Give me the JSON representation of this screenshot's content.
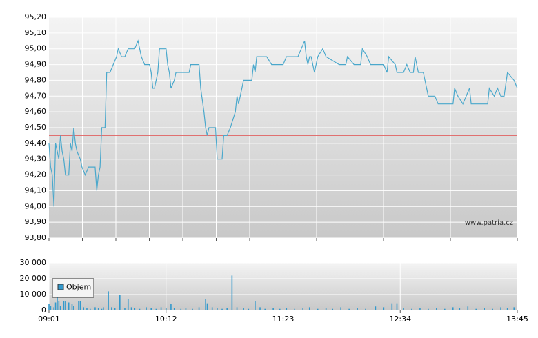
{
  "chart_data": [
    {
      "type": "line",
      "color": "#4aa8cc",
      "reference_line": 94.45,
      "reference_color": "#e06060",
      "annotation": "www.patria.cz",
      "xlim": [
        "09:01",
        "13:45"
      ],
      "ylim": [
        93.8,
        95.2
      ],
      "yticks": [
        {
          "value": 93.8,
          "label": "93,80"
        },
        {
          "value": 93.9,
          "label": "93,90"
        },
        {
          "value": 94.0,
          "label": "94,00"
        },
        {
          "value": 94.1,
          "label": "94,10"
        },
        {
          "value": 94.2,
          "label": "94,20"
        },
        {
          "value": 94.3,
          "label": "94,30"
        },
        {
          "value": 94.4,
          "label": "94,40"
        },
        {
          "value": 94.5,
          "label": "94,50"
        },
        {
          "value": 94.6,
          "label": "94,60"
        },
        {
          "value": 94.7,
          "label": "94,70"
        },
        {
          "value": 94.8,
          "label": "94,80"
        },
        {
          "value": 94.9,
          "label": "94,90"
        },
        {
          "value": 95.0,
          "label": "95,00"
        },
        {
          "value": 95.1,
          "label": "95,10"
        },
        {
          "value": 95.2,
          "label": "95,20"
        }
      ],
      "grid": true,
      "x": [
        "09:01",
        "09:02",
        "09:03",
        "09:04",
        "09:05",
        "09:06",
        "09:07",
        "09:08",
        "09:09",
        "09:10",
        "09:11",
        "09:13",
        "09:14",
        "09:15",
        "09:16",
        "09:17",
        "09:18",
        "09:20",
        "09:21",
        "09:23",
        "09:25",
        "09:29",
        "09:30",
        "09:31",
        "09:32",
        "09:33",
        "09:35",
        "09:36",
        "09:38",
        "09:40",
        "09:42",
        "09:43",
        "09:45",
        "09:47",
        "09:49",
        "09:53",
        "09:55",
        "09:57",
        "09:59",
        "10:02",
        "10:03",
        "10:04",
        "10:05",
        "10:07",
        "10:08",
        "10:12",
        "10:13",
        "10:14",
        "10:15",
        "10:17",
        "10:18",
        "10:26",
        "10:27",
        "10:32",
        "10:33",
        "10:35",
        "10:36",
        "10:37",
        "10:38",
        "10:42",
        "10:43",
        "10:46",
        "10:47",
        "10:49",
        "10:51",
        "10:54",
        "10:55",
        "10:56",
        "10:58",
        "10:59",
        "11:04",
        "11:05",
        "11:06",
        "11:07",
        "11:13",
        "11:16",
        "11:23",
        "11:25",
        "11:32",
        "11:34",
        "11:36",
        "11:37",
        "11:38",
        "11:39",
        "11:40",
        "11:42",
        "11:44",
        "11:47",
        "11:49",
        "11:57",
        "12:01",
        "12:02",
        "12:06",
        "12:10",
        "12:11",
        "12:14",
        "12:16",
        "12:24",
        "12:26",
        "12:27",
        "12:31",
        "12:32",
        "12:36",
        "12:38",
        "12:40",
        "12:42",
        "12:43",
        "12:45",
        "12:48",
        "12:51",
        "12:55",
        "12:57",
        "13:06",
        "13:07",
        "13:09",
        "13:12",
        "13:16",
        "13:17",
        "13:27",
        "13:28",
        "13:31",
        "13:33",
        "13:35",
        "13:37",
        "13:39",
        "13:43",
        "13:45"
      ],
      "values": [
        94.4,
        94.25,
        94.2,
        94.0,
        94.4,
        94.35,
        94.3,
        94.45,
        94.35,
        94.3,
        94.2,
        94.2,
        94.4,
        94.35,
        94.5,
        94.4,
        94.35,
        94.3,
        94.25,
        94.2,
        94.25,
        94.25,
        94.1,
        94.2,
        94.25,
        94.5,
        94.5,
        94.85,
        94.85,
        94.9,
        94.95,
        95.0,
        94.95,
        94.95,
        95.0,
        95.0,
        95.05,
        94.95,
        94.9,
        94.9,
        94.85,
        94.75,
        94.75,
        94.85,
        95.0,
        95.0,
        94.9,
        94.85,
        94.75,
        94.8,
        94.85,
        94.85,
        94.9,
        94.9,
        94.75,
        94.6,
        94.5,
        94.45,
        94.5,
        94.5,
        94.3,
        94.3,
        94.45,
        94.45,
        94.5,
        94.6,
        94.7,
        94.65,
        94.75,
        94.8,
        94.8,
        94.9,
        94.85,
        94.95,
        94.95,
        94.9,
        94.9,
        94.95,
        94.95,
        95.0,
        95.05,
        94.95,
        94.9,
        94.95,
        94.95,
        94.85,
        94.95,
        95.0,
        94.95,
        94.9,
        94.9,
        94.95,
        94.9,
        94.9,
        95.0,
        94.95,
        94.9,
        94.9,
        94.85,
        94.95,
        94.9,
        94.85,
        94.85,
        94.9,
        94.85,
        94.85,
        94.95,
        94.85,
        94.85,
        94.7,
        94.7,
        94.65,
        94.65,
        94.75,
        94.7,
        94.65,
        94.75,
        94.65,
        94.65,
        94.75,
        94.7,
        94.75,
        94.7,
        94.7,
        94.85,
        94.8,
        94.75
      ]
    },
    {
      "type": "bar",
      "legend": "top-left",
      "xlim": [
        "09:01",
        "13:45"
      ],
      "xticks": [
        "09:01",
        "10:12",
        "11:23",
        "12:34",
        "13:45"
      ],
      "ylim": [
        0,
        30000
      ],
      "yticks": [
        0,
        {
          "value": 10000,
          "label": "10 000"
        },
        {
          "value": 20000,
          "label": "20 000"
        },
        {
          "value": 30000,
          "label": "30 000"
        }
      ],
      "grid": true,
      "x": [
        "09:01",
        "09:02",
        "09:04",
        "09:05",
        "09:06",
        "09:07",
        "09:08",
        "09:10",
        "09:11",
        "09:13",
        "09:15",
        "09:16",
        "09:19",
        "09:20",
        "09:22",
        "09:24",
        "09:26",
        "09:29",
        "09:31",
        "09:33",
        "09:34",
        "09:37",
        "09:39",
        "09:41",
        "09:44",
        "09:47",
        "09:49",
        "09:51",
        "09:53",
        "09:56",
        "10:00",
        "10:03",
        "10:06",
        "10:09",
        "10:12",
        "10:15",
        "10:17",
        "10:21",
        "10:24",
        "10:28",
        "10:32",
        "10:36",
        "10:37",
        "10:40",
        "10:43",
        "10:46",
        "10:49",
        "10:52",
        "10:55",
        "10:59",
        "11:02",
        "11:06",
        "11:09",
        "11:12",
        "11:17",
        "11:21",
        "11:25",
        "11:30",
        "11:35",
        "11:39",
        "11:44",
        "11:49",
        "11:53",
        "11:58",
        "12:03",
        "12:08",
        "12:13",
        "12:19",
        "12:24",
        "12:29",
        "12:32",
        "12:36",
        "12:41",
        "12:46",
        "12:51",
        "12:56",
        "13:01",
        "13:06",
        "13:10",
        "13:15",
        "13:20",
        "13:25",
        "13:30",
        "13:35",
        "13:39",
        "13:43"
      ],
      "series": [
        {
          "name": "Objem",
          "color": "#3399cc",
          "values": [
            4000,
            3000,
            2000,
            5000,
            13000,
            6000,
            3000,
            6000,
            6000,
            5000,
            4000,
            3000,
            6000,
            6000,
            2000,
            1500,
            1000,
            2000,
            1500,
            1000,
            2000,
            12000,
            2000,
            1500,
            10000,
            1500,
            7000,
            2000,
            1500,
            1000,
            2000,
            1500,
            1000,
            2000,
            1500,
            4000,
            1500,
            1000,
            1500,
            1000,
            2000,
            7000,
            4500,
            2000,
            1500,
            1000,
            1500,
            22000,
            2000,
            1500,
            1000,
            6000,
            2000,
            1000,
            1500,
            1000,
            1500,
            1000,
            1500,
            2000,
            1000,
            1500,
            1000,
            2000,
            1000,
            1500,
            1000,
            2500,
            2000,
            4500,
            4500,
            1500,
            1000,
            1500,
            1000,
            1500,
            1000,
            2000,
            1500,
            2500,
            1000,
            1500,
            1000,
            2000,
            1500,
            2000
          ]
        }
      ]
    }
  ]
}
